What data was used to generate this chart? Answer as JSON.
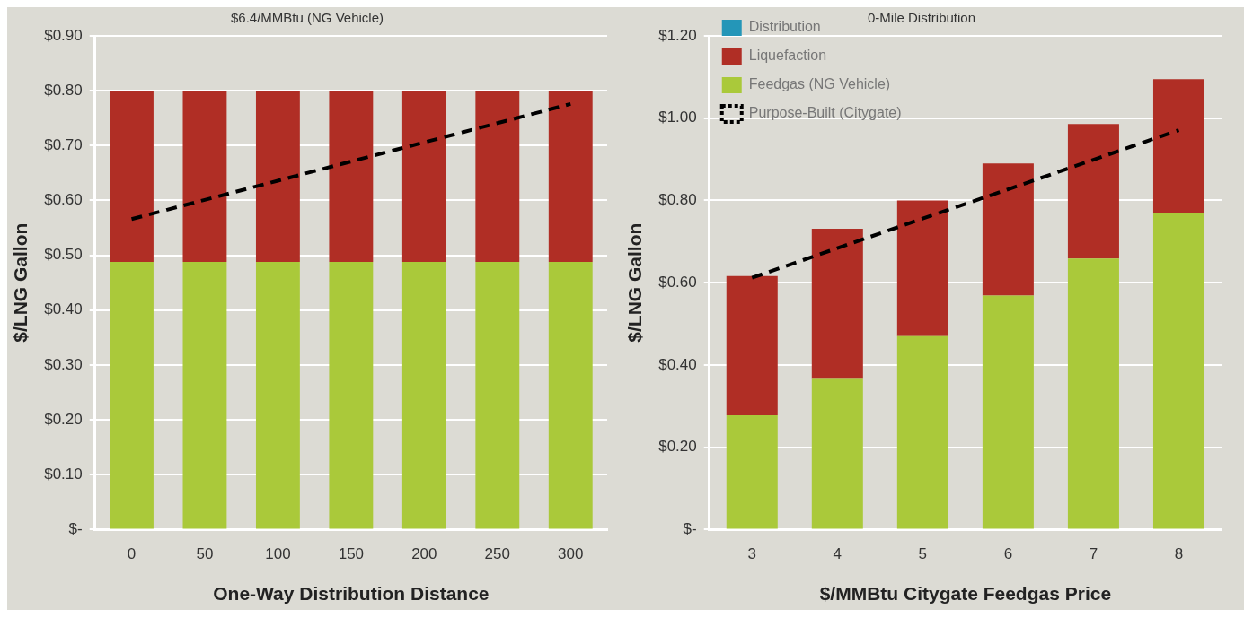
{
  "chart_data": [
    {
      "type": "bar",
      "stacked": true,
      "title": "$6.4/MMBtu (NG Vehicle)",
      "xlabel": "One-Way Distribution Distance",
      "ylabel": "$/LNG Gallon",
      "categories": [
        "0",
        "50",
        "100",
        "150",
        "200",
        "250",
        "300"
      ],
      "series": [
        {
          "color": "#aac93a",
          "values": [
            0.488,
            0.488,
            0.488,
            0.488,
            0.488,
            0.488,
            0.488
          ]
        },
        {
          "color": "#b02e25",
          "values": [
            0.312,
            0.312,
            0.312,
            0.312,
            0.312,
            0.312,
            0.312
          ]
        },
        {
          "type": "line",
          "line_style": "dashed",
          "color": "#000000",
          "values": [
            0.566,
            0.601,
            0.636,
            0.671,
            0.706,
            0.741,
            0.776
          ]
        }
      ],
      "ylim": [
        0,
        0.9
      ],
      "yticks": [
        {
          "value": 0,
          "label": "$-"
        },
        {
          "value": 0.1,
          "label": "$0.10"
        },
        {
          "value": 0.2,
          "label": "$0.20"
        },
        {
          "value": 0.3,
          "label": "$0.30"
        },
        {
          "value": 0.4,
          "label": "$0.40"
        },
        {
          "value": 0.5,
          "label": "$0.50"
        },
        {
          "value": 0.6,
          "label": "$0.60"
        },
        {
          "value": 0.7,
          "label": "$0.70"
        },
        {
          "value": 0.8,
          "label": "$0.80"
        },
        {
          "value": 0.9,
          "label": "$0.90"
        }
      ],
      "grid": "y"
    },
    {
      "type": "bar",
      "stacked": true,
      "title": "0-Mile Distribution",
      "xlabel": "$/MMBtu Citygate Feedgas Price",
      "ylabel": "$/LNG Gallon",
      "categories": [
        "3",
        "4",
        "5",
        "6",
        "7",
        "8"
      ],
      "series": [
        {
          "name": "Feedgas (NG Vehicle)",
          "color": "#aac93a",
          "values": [
            0.278,
            0.368,
            0.47,
            0.569,
            0.659,
            0.77
          ]
        },
        {
          "name": "Liquefaction",
          "color": "#b02e25",
          "values": [
            0.338,
            0.363,
            0.33,
            0.321,
            0.327,
            0.325
          ]
        },
        {
          "name": "Distribution",
          "color": "#2496b8",
          "values": [
            0,
            0,
            0,
            0,
            0,
            0
          ]
        },
        {
          "type": "line",
          "name": "Purpose-Built (Citygate)",
          "line_style": "dashed",
          "color": "#000000",
          "values": [
            0.612,
            0.684,
            0.756,
            0.827,
            0.899,
            0.971
          ]
        }
      ],
      "ylim": [
        0,
        1.2
      ],
      "yticks": [
        {
          "value": 0,
          "label": "$-"
        },
        {
          "value": 0.2,
          "label": "$0.20"
        },
        {
          "value": 0.4,
          "label": "$0.40"
        },
        {
          "value": 0.6,
          "label": "$0.60"
        },
        {
          "value": 0.8,
          "label": "$0.80"
        },
        {
          "value": 1.0,
          "label": "$1.00"
        },
        {
          "value": 1.2,
          "label": "$1.20"
        }
      ],
      "grid": "y",
      "legend": "top left"
    }
  ]
}
